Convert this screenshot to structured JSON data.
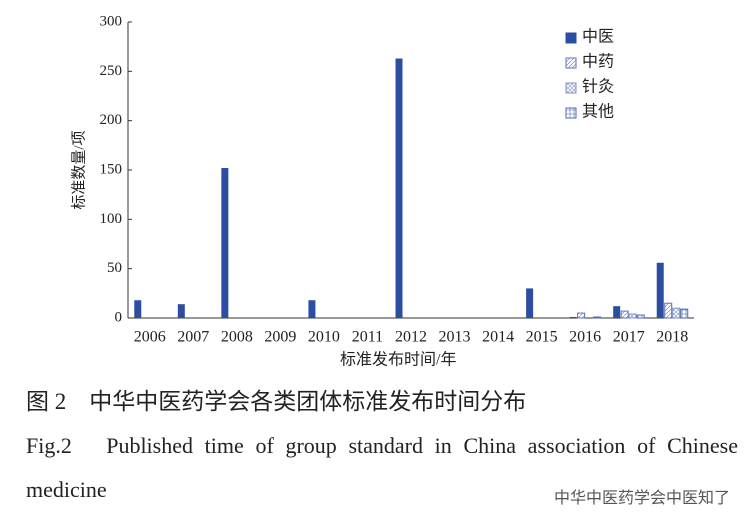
{
  "chart_data": {
    "type": "bar",
    "x_label": "标准发布时间/年",
    "y_label": "标准数量/项",
    "categories": [
      "2006",
      "2007",
      "2008",
      "2009",
      "2010",
      "2011",
      "2012",
      "2013",
      "2014",
      "2015",
      "2016",
      "2017",
      "2018"
    ],
    "series": [
      {
        "name": "中医",
        "color": "#2b4ea2",
        "values": [
          18,
          14,
          152,
          0,
          18,
          0,
          263,
          0,
          0,
          30,
          1,
          12,
          56
        ]
      },
      {
        "name": "中药",
        "color": "#5a72b8",
        "values": [
          0,
          0,
          0,
          0,
          0,
          0,
          0,
          0,
          0,
          0,
          5,
          7,
          15
        ]
      },
      {
        "name": "针灸",
        "color": "#7f93cc",
        "values": [
          0,
          0,
          0,
          0,
          0,
          0,
          0,
          0,
          0,
          0,
          0,
          4,
          10
        ]
      },
      {
        "name": "其他",
        "color": "#4d68b0",
        "values": [
          0,
          0,
          0,
          0,
          0,
          0,
          0,
          0,
          0,
          0,
          1,
          3,
          9
        ]
      }
    ],
    "ylim": [
      0,
      300
    ],
    "yticks": [
      0,
      50,
      100,
      150,
      200,
      250,
      300
    ],
    "grid": false,
    "legend": "top-right"
  },
  "caption_cn": "图 2　中华中医药学会各类团体标准发布时间分布",
  "caption_en": "Fig.2　Published time of group standard in China association of Chinese medicine",
  "watermark": "中华中医药学会中医知了"
}
